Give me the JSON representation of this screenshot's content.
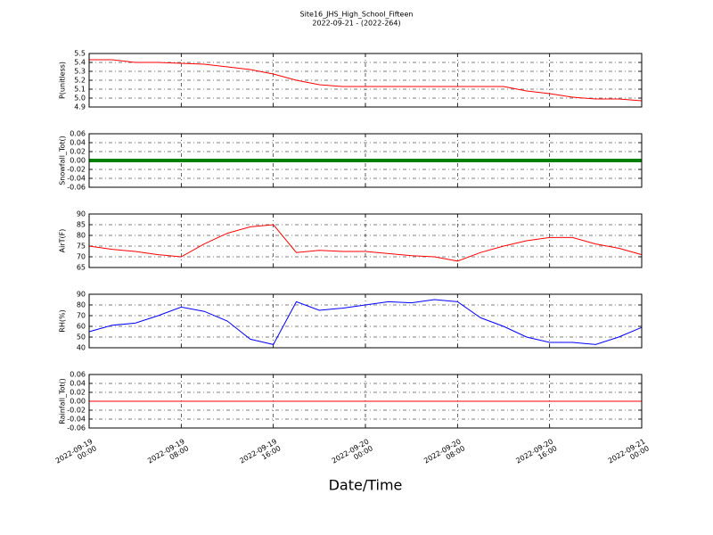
{
  "title": "Site16_JHS_High_School_Fifteen",
  "subtitle": "2022-09-21 - (2022-264)",
  "xlabel": "Date/Time",
  "chart_data": [
    {
      "type": "line",
      "ylabel": "P(unitless)",
      "x": [
        "2022-09-19 00:00",
        "2022-09-19 02:00",
        "2022-09-19 04:00",
        "2022-09-19 06:00",
        "2022-09-19 08:00",
        "2022-09-19 10:00",
        "2022-09-19 12:00",
        "2022-09-19 14:00",
        "2022-09-19 16:00",
        "2022-09-19 18:00",
        "2022-09-19 20:00",
        "2022-09-19 22:00",
        "2022-09-20 00:00",
        "2022-09-20 02:00",
        "2022-09-20 04:00",
        "2022-09-20 06:00",
        "2022-09-20 08:00",
        "2022-09-20 10:00",
        "2022-09-20 12:00",
        "2022-09-20 14:00",
        "2022-09-20 16:00",
        "2022-09-20 18:00",
        "2022-09-20 20:00",
        "2022-09-20 22:00",
        "2022-09-21 00:00"
      ],
      "series": [
        {
          "name": "P",
          "color": "#ff0000",
          "values": [
            5.43,
            5.43,
            5.4,
            5.4,
            5.39,
            5.38,
            5.35,
            5.32,
            5.27,
            5.2,
            5.15,
            5.13,
            5.13,
            5.13,
            5.13,
            5.13,
            5.13,
            5.13,
            5.13,
            5.08,
            5.05,
            5.01,
            4.99,
            4.99,
            4.97
          ]
        }
      ],
      "xlim": [
        "2022-09-19 00:00",
        "2022-09-21 00:00"
      ],
      "ylim": [
        4.9,
        5.5
      ],
      "yticks": [
        4.9,
        {
          "value": 5,
          "label": "5.0"
        },
        5.1,
        5.2,
        5.3,
        5.4,
        5.5
      ],
      "grid": true
    },
    {
      "type": "line",
      "ylabel": "Snowfall_Tot()",
      "x": [
        "2022-09-19 00:00",
        "2022-09-19 02:00",
        "2022-09-19 04:00",
        "2022-09-19 06:00",
        "2022-09-19 08:00",
        "2022-09-19 10:00",
        "2022-09-19 12:00",
        "2022-09-19 14:00",
        "2022-09-19 16:00",
        "2022-09-19 18:00",
        "2022-09-19 20:00",
        "2022-09-19 22:00",
        "2022-09-20 00:00",
        "2022-09-20 02:00",
        "2022-09-20 04:00",
        "2022-09-20 06:00",
        "2022-09-20 08:00",
        "2022-09-20 10:00",
        "2022-09-20 12:00",
        "2022-09-20 14:00",
        "2022-09-20 16:00",
        "2022-09-20 18:00",
        "2022-09-20 20:00",
        "2022-09-20 22:00",
        "2022-09-21 00:00"
      ],
      "series": [
        {
          "name": "Snowfall_Tot",
          "color": "#008000",
          "values": [
            0,
            0,
            0,
            0,
            0,
            0,
            0,
            0,
            0,
            0,
            0,
            0,
            0,
            0,
            0,
            0,
            0,
            0,
            0,
            0,
            0,
            0,
            0,
            0,
            0
          ]
        }
      ],
      "xlim": [
        "2022-09-19 00:00",
        "2022-09-21 00:00"
      ],
      "ylim": [
        -0.06,
        0.06
      ],
      "yticks": [
        -0.06,
        -0.04,
        -0.02,
        {
          "value": 0,
          "label": "0.00"
        },
        0.02,
        0.04,
        0.06
      ],
      "grid": true
    },
    {
      "type": "line",
      "ylabel": "AirT(F)",
      "x": [
        "2022-09-19 00:00",
        "2022-09-19 02:00",
        "2022-09-19 04:00",
        "2022-09-19 06:00",
        "2022-09-19 08:00",
        "2022-09-19 10:00",
        "2022-09-19 12:00",
        "2022-09-19 14:00",
        "2022-09-19 16:00",
        "2022-09-19 18:00",
        "2022-09-19 20:00",
        "2022-09-19 22:00",
        "2022-09-20 00:00",
        "2022-09-20 02:00",
        "2022-09-20 04:00",
        "2022-09-20 06:00",
        "2022-09-20 08:00",
        "2022-09-20 10:00",
        "2022-09-20 12:00",
        "2022-09-20 14:00",
        "2022-09-20 16:00",
        "2022-09-20 18:00",
        "2022-09-20 20:00",
        "2022-09-20 22:00",
        "2022-09-21 00:00"
      ],
      "series": [
        {
          "name": "AirT",
          "color": "#ff0000",
          "values": [
            75,
            73.5,
            72.5,
            71,
            70,
            76,
            81,
            84,
            85,
            72,
            73,
            72.5,
            72.5,
            71.5,
            70.5,
            70,
            68,
            72,
            75,
            77.5,
            79,
            79,
            76,
            74,
            71
          ]
        }
      ],
      "xlim": [
        "2022-09-19 00:00",
        "2022-09-21 00:00"
      ],
      "ylim": [
        65,
        90
      ],
      "yticks": [
        65,
        70,
        75,
        80,
        85,
        90
      ],
      "grid": true
    },
    {
      "type": "line",
      "ylabel": "RH(%)",
      "x": [
        "2022-09-19 00:00",
        "2022-09-19 02:00",
        "2022-09-19 04:00",
        "2022-09-19 06:00",
        "2022-09-19 08:00",
        "2022-09-19 10:00",
        "2022-09-19 12:00",
        "2022-09-19 14:00",
        "2022-09-19 16:00",
        "2022-09-19 18:00",
        "2022-09-19 20:00",
        "2022-09-19 22:00",
        "2022-09-20 00:00",
        "2022-09-20 02:00",
        "2022-09-20 04:00",
        "2022-09-20 06:00",
        "2022-09-20 08:00",
        "2022-09-20 10:00",
        "2022-09-20 12:00",
        "2022-09-20 14:00",
        "2022-09-20 16:00",
        "2022-09-20 18:00",
        "2022-09-20 20:00",
        "2022-09-20 22:00",
        "2022-09-21 00:00"
      ],
      "series": [
        {
          "name": "RH",
          "color": "#0000ff",
          "values": [
            55,
            61,
            63,
            70,
            78,
            74,
            65,
            48,
            43,
            83,
            75,
            77,
            80,
            83,
            82,
            85,
            83,
            68,
            60,
            50,
            45,
            45,
            43,
            50,
            59
          ]
        }
      ],
      "xlim": [
        "2022-09-19 00:00",
        "2022-09-21 00:00"
      ],
      "ylim": [
        40,
        90
      ],
      "yticks": [
        40,
        50,
        60,
        70,
        80,
        90
      ],
      "grid": true
    },
    {
      "type": "line",
      "ylabel": "Rainfall_Tot()",
      "x": [
        "2022-09-19 00:00",
        "2022-09-19 02:00",
        "2022-09-19 04:00",
        "2022-09-19 06:00",
        "2022-09-19 08:00",
        "2022-09-19 10:00",
        "2022-09-19 12:00",
        "2022-09-19 14:00",
        "2022-09-19 16:00",
        "2022-09-19 18:00",
        "2022-09-19 20:00",
        "2022-09-19 22:00",
        "2022-09-20 00:00",
        "2022-09-20 02:00",
        "2022-09-20 04:00",
        "2022-09-20 06:00",
        "2022-09-20 08:00",
        "2022-09-20 10:00",
        "2022-09-20 12:00",
        "2022-09-20 14:00",
        "2022-09-20 16:00",
        "2022-09-20 18:00",
        "2022-09-20 20:00",
        "2022-09-20 22:00",
        "2022-09-21 00:00"
      ],
      "series": [
        {
          "name": "Rainfall_Tot",
          "color": "#ff0000",
          "values": [
            0,
            0,
            0,
            0,
            0,
            0,
            0,
            0,
            0,
            0,
            0,
            0,
            0,
            0,
            0,
            0,
            0,
            0,
            0,
            0,
            0,
            0,
            0,
            0,
            0
          ]
        }
      ],
      "xlim": [
        "2022-09-19 00:00",
        "2022-09-21 00:00"
      ],
      "ylim": [
        -0.06,
        0.06
      ],
      "yticks": [
        -0.06,
        -0.04,
        -0.02,
        {
          "value": 0,
          "label": "0.00"
        },
        0.02,
        0.04,
        0.06
      ],
      "xticks": [
        "2022-09-19 00:00",
        "2022-09-19 08:00",
        "2022-09-19 16:00",
        "2022-09-20 00:00",
        "2022-09-20 08:00",
        "2022-09-20 16:00",
        "2022-09-21 00:00"
      ],
      "grid": true
    }
  ]
}
